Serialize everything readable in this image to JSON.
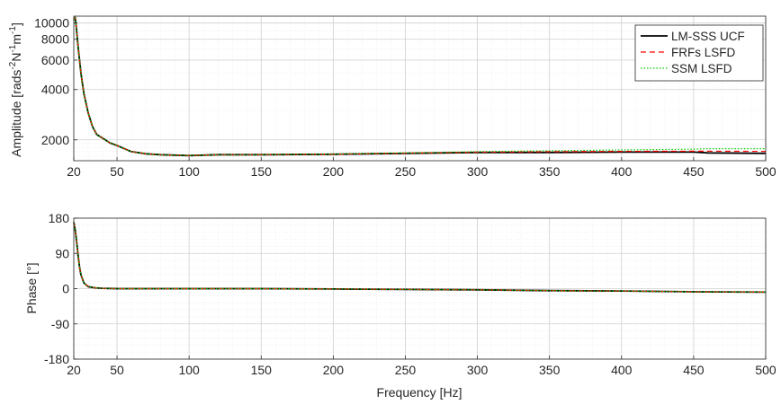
{
  "chart_data": [
    {
      "type": "line",
      "title": "",
      "xlabel": "",
      "ylabel": "Amplitude [rads",
      "ylabel_parts": [
        "Amplitude [rads",
        "-2",
        "N",
        "-1",
        "m",
        "-1",
        "]"
      ],
      "xlim": [
        20,
        500
      ],
      "ylim": [
        1500,
        11000
      ],
      "yscale": "log",
      "grid": true,
      "minor_grid": true,
      "legend_position": "top-right",
      "xticks": [
        20,
        50,
        100,
        150,
        200,
        250,
        300,
        350,
        400,
        450,
        500
      ],
      "xtick_labels": [
        "20",
        "50",
        "100",
        "150",
        "200",
        "250",
        "300",
        "350",
        "400",
        "450",
        "500"
      ],
      "yticks": [
        2000,
        4000,
        6000,
        8000,
        10000
      ],
      "ytick_labels": [
        "2000",
        "4000",
        "6000",
        "8000",
        "10000"
      ],
      "x": [
        20,
        21,
        22,
        23,
        25,
        27,
        30,
        33,
        36,
        40,
        45,
        50,
        55,
        60,
        70,
        80,
        100,
        120,
        150,
        200,
        250,
        300,
        350,
        400,
        450,
        460,
        500
      ],
      "series": [
        {
          "name": "LM-SSS UCF",
          "color": "#000000",
          "style": "solid",
          "values": [
            10500,
            10800,
            9000,
            7200,
            5000,
            3800,
            2900,
            2400,
            2150,
            2050,
            1920,
            1850,
            1770,
            1700,
            1650,
            1630,
            1610,
            1630,
            1630,
            1640,
            1660,
            1680,
            1680,
            1690,
            1690,
            1670,
            1660
          ]
        },
        {
          "name": "FRFs LSFD",
          "color": "#ff0000",
          "style": "dashed",
          "values": [
            10400,
            10800,
            9000,
            7200,
            5000,
            3800,
            2900,
            2400,
            2150,
            2050,
            1920,
            1850,
            1770,
            1700,
            1650,
            1630,
            1610,
            1630,
            1630,
            1640,
            1665,
            1690,
            1700,
            1705,
            1710,
            1710,
            1705
          ]
        },
        {
          "name": "SSM LSFD",
          "color": "#00cc00",
          "style": "dotted",
          "values": [
            10400,
            10800,
            9000,
            7200,
            5000,
            3800,
            2900,
            2400,
            2150,
            2050,
            1920,
            1850,
            1770,
            1700,
            1650,
            1630,
            1610,
            1630,
            1630,
            1645,
            1670,
            1700,
            1720,
            1740,
            1760,
            1770,
            1770
          ]
        }
      ]
    },
    {
      "type": "line",
      "title": "",
      "xlabel": "Frequency [Hz]",
      "ylabel": "Phase [°]",
      "xlim": [
        20,
        500
      ],
      "ylim": [
        -180,
        180
      ],
      "grid": true,
      "minor_grid": true,
      "xticks": [
        20,
        50,
        100,
        150,
        200,
        250,
        300,
        350,
        400,
        450,
        500
      ],
      "xtick_labels": [
        "20",
        "50",
        "100",
        "150",
        "200",
        "250",
        "300",
        "350",
        "400",
        "450",
        "500"
      ],
      "yticks": [
        -180,
        -90,
        0,
        90,
        180
      ],
      "ytick_labels": [
        "-180",
        "-90",
        "0",
        "90",
        "180"
      ],
      "x": [
        20,
        21,
        22,
        23,
        24,
        25,
        27,
        30,
        35,
        40,
        50,
        60,
        100,
        150,
        200,
        250,
        300,
        350,
        400,
        450,
        500
      ],
      "series": [
        {
          "name": "LM-SSS UCF",
          "color": "#000000",
          "style": "solid",
          "values": [
            170,
            150,
            120,
            85,
            55,
            35,
            15,
            5,
            2,
            1,
            0,
            0,
            0,
            0,
            -1,
            -2,
            -3,
            -5,
            -6,
            -8,
            -9
          ]
        },
        {
          "name": "FRFs LSFD",
          "color": "#ff0000",
          "style": "dashed",
          "values": [
            170,
            150,
            120,
            85,
            55,
            35,
            15,
            5,
            2,
            1,
            0,
            0,
            0,
            0,
            -1,
            -2,
            -3,
            -5,
            -6,
            -8,
            -9
          ]
        },
        {
          "name": "SSM LSFD",
          "color": "#00cc00",
          "style": "dotted",
          "values": [
            170,
            150,
            120,
            85,
            55,
            35,
            15,
            5,
            2,
            1,
            0,
            0,
            0,
            0,
            -1,
            -2,
            -3,
            -5,
            -6,
            -8,
            -9
          ]
        }
      ]
    }
  ]
}
